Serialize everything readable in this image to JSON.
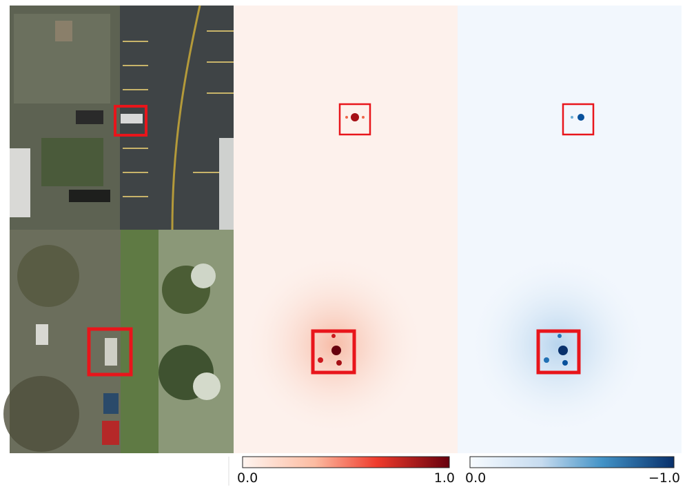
{
  "colorbars": [
    {
      "min_label": "0.0",
      "max_label": "1.0"
    },
    {
      "min_label": "0.0",
      "max_label": "−1.0"
    }
  ]
}
